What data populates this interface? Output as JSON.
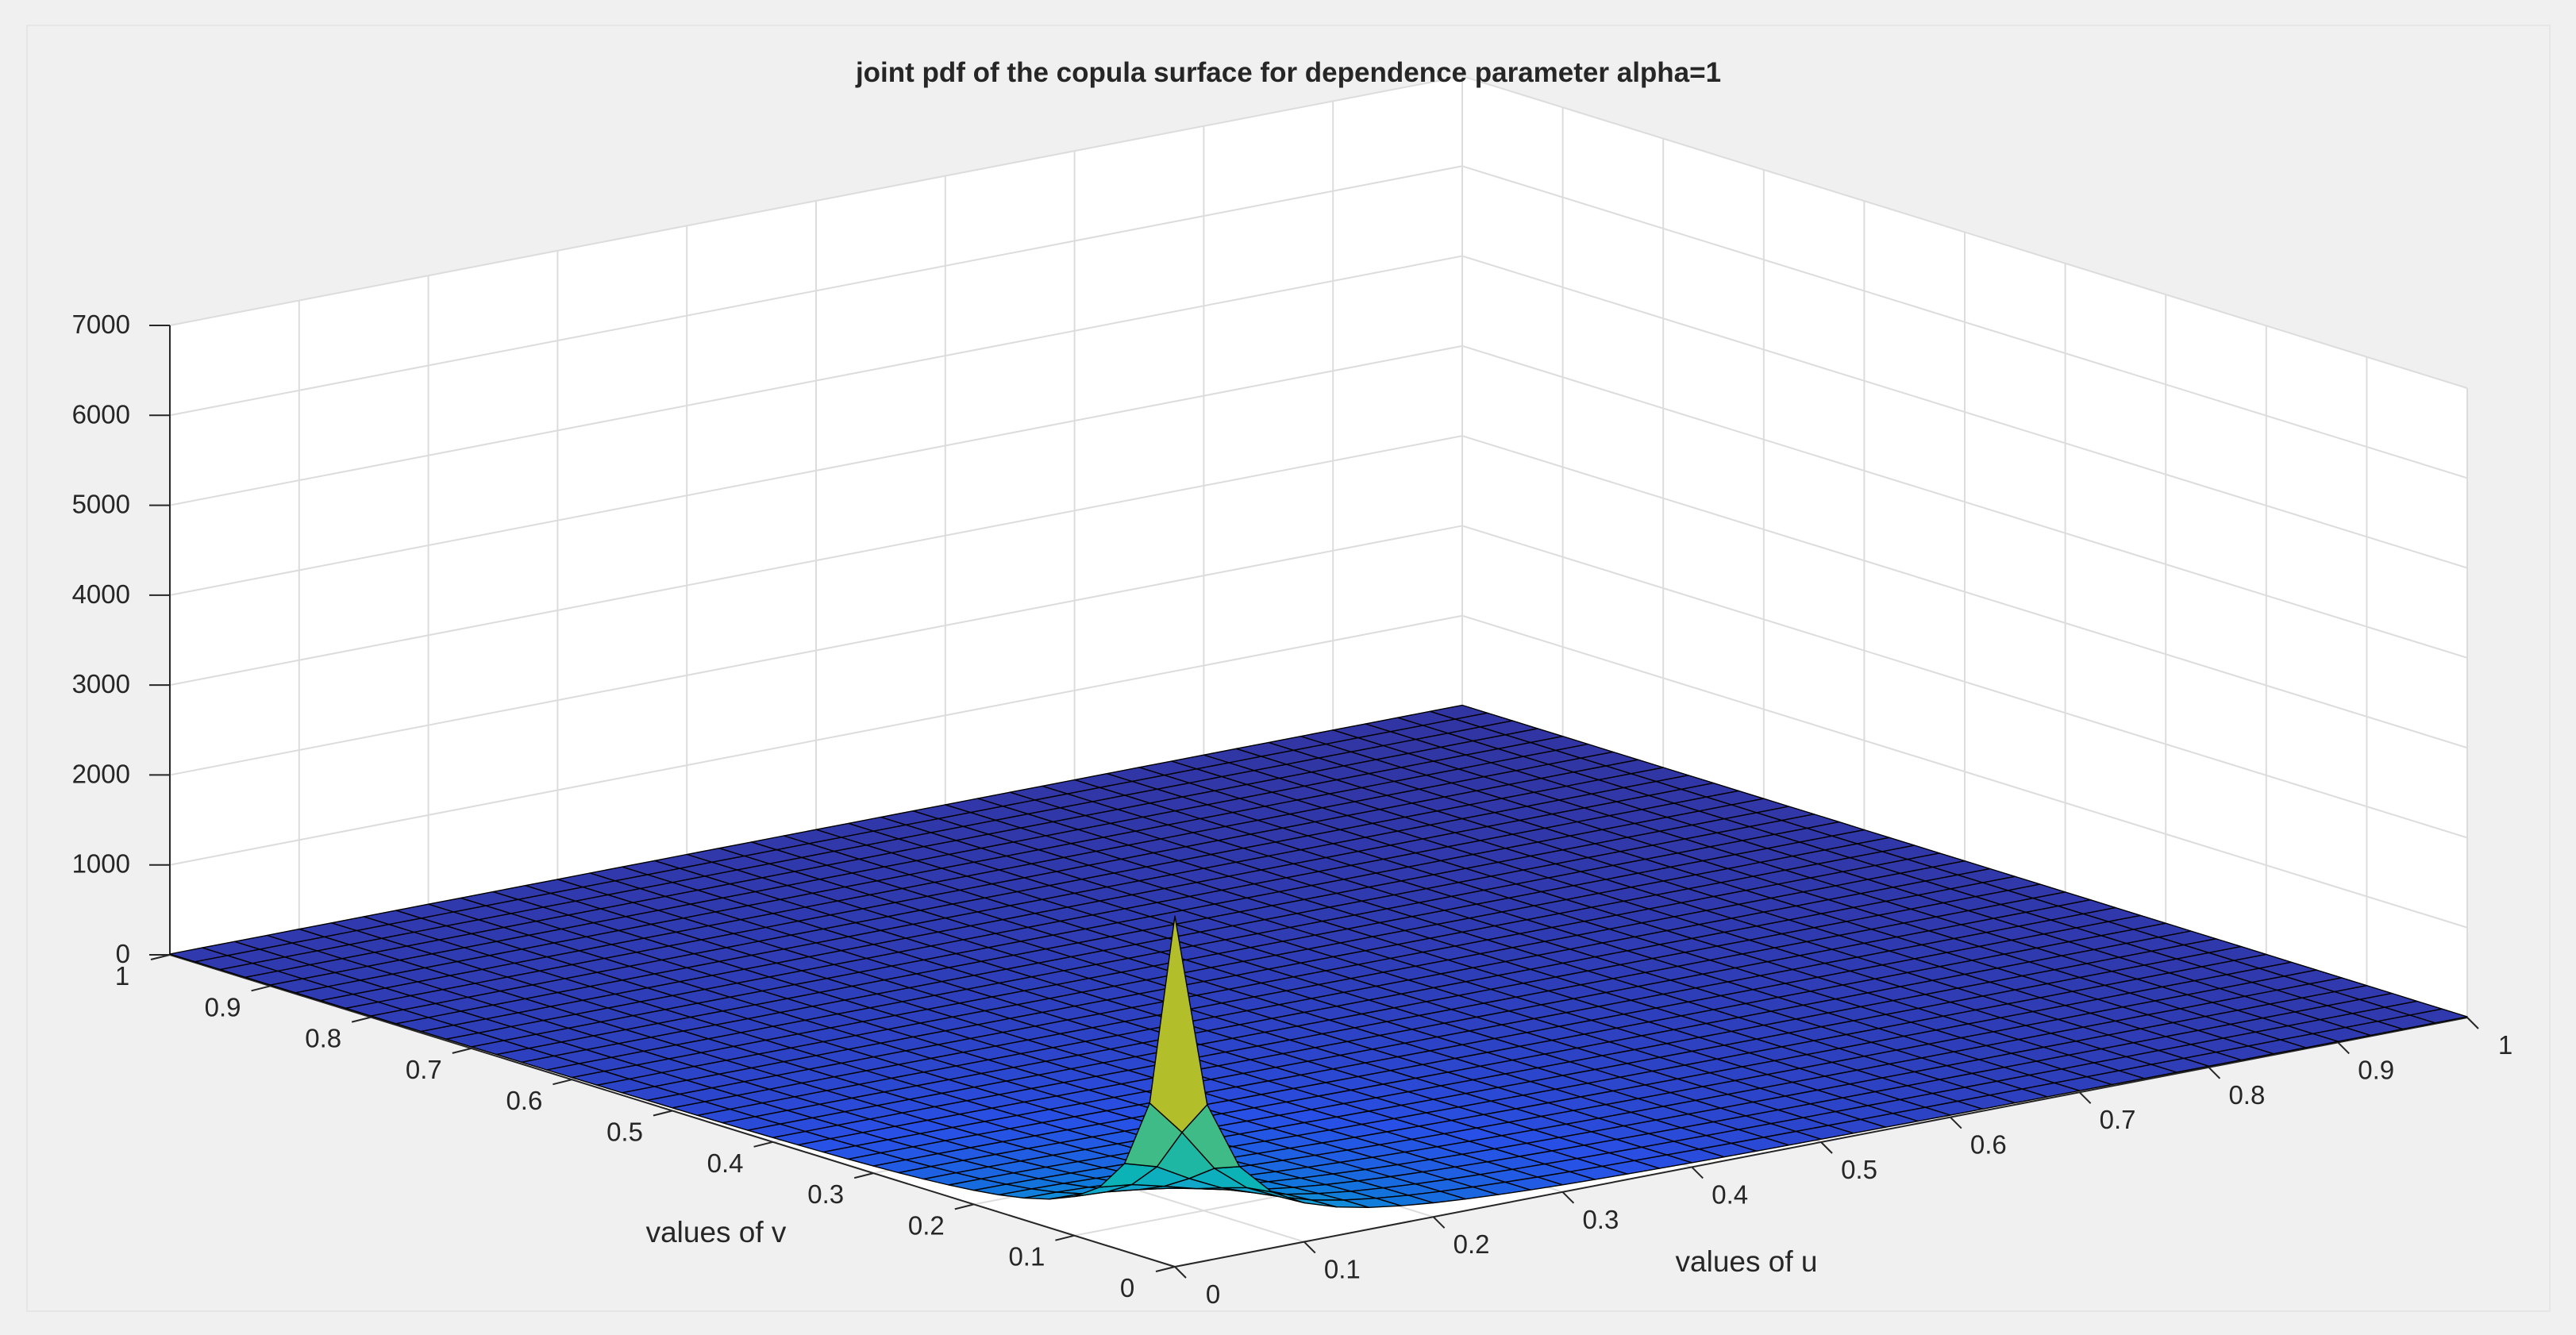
{
  "chart_data": {
    "type": "surface",
    "title": "joint pdf of the copula surface for dependence parameter alpha=1",
    "xlabel": "values of u",
    "ylabel": "values of v",
    "zlabel": "",
    "xlim": [
      0,
      1
    ],
    "ylim": [
      0,
      1
    ],
    "zlim": [
      0,
      7000
    ],
    "x_ticks": [
      "0",
      "0.1",
      "0.2",
      "0.3",
      "0.4",
      "0.5",
      "0.6",
      "0.7",
      "0.8",
      "0.9",
      "1"
    ],
    "y_ticks": [
      "0",
      "0.1",
      "0.2",
      "0.3",
      "0.4",
      "0.5",
      "0.6",
      "0.7",
      "0.8",
      "0.9",
      "1"
    ],
    "z_ticks": [
      "0",
      "1000",
      "2000",
      "3000",
      "4000",
      "5000",
      "6000",
      "7000"
    ],
    "grid": true,
    "colormap": "parula",
    "grid_resolution": 41,
    "peak": {
      "u": 0,
      "v": 0,
      "z": 3900
    },
    "edge_values_near_zero": true
  },
  "colors": {
    "figure_background": "#f0f0f0",
    "axes_background": "#ffffff",
    "grid": "#dcdcdc",
    "axis_line": "#262626",
    "edge": "#000000"
  }
}
